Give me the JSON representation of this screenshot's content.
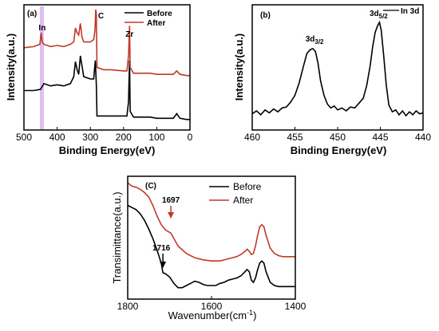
{
  "chart_data": [
    {
      "type": "line",
      "panel_label": "(a)",
      "xlabel": "Binding Energy(eV)",
      "ylabel": "Intensity(a.u.)",
      "xlim": [
        500,
        0
      ],
      "x_reversed": true,
      "xticks": [
        500,
        400,
        300,
        200,
        100,
        0
      ],
      "annotations": [
        {
          "text": "In",
          "x": 445
        },
        {
          "text": "C",
          "x": 285
        },
        {
          "text": "Zr",
          "x": 182
        }
      ],
      "highlight_band": {
        "x_from": 452,
        "x_to": 440,
        "color": "#d8b4f0"
      },
      "series": [
        {
          "name": "Before",
          "color": "#000000",
          "x": [
            500,
            470,
            450,
            440,
            420,
            400,
            380,
            360,
            350,
            345,
            340,
            335,
            330,
            320,
            300,
            290,
            285,
            282,
            280,
            260,
            240,
            200,
            190,
            185,
            182,
            180,
            170,
            150,
            120,
            100,
            60,
            50,
            40,
            30,
            10,
            0
          ],
          "y": [
            0.3,
            0.3,
            0.31,
            0.36,
            0.34,
            0.35,
            0.34,
            0.36,
            0.42,
            0.55,
            0.48,
            0.44,
            0.6,
            0.42,
            0.4,
            0.4,
            0.56,
            0.35,
            0.08,
            0.08,
            0.08,
            0.08,
            0.08,
            0.2,
            0.56,
            0.12,
            0.07,
            0.07,
            0.07,
            0.06,
            0.06,
            0.06,
            0.1,
            0.06,
            0.05,
            0.05
          ]
        },
        {
          "name": "After",
          "color": "#c0392b",
          "x": [
            500,
            470,
            452,
            448,
            445,
            440,
            420,
            400,
            380,
            360,
            350,
            345,
            340,
            335,
            330,
            325,
            320,
            300,
            290,
            286,
            284,
            282,
            280,
            260,
            240,
            200,
            190,
            185,
            182,
            180,
            170,
            150,
            120,
            100,
            60,
            50,
            40,
            30,
            10,
            0
          ],
          "y": [
            0.67,
            0.68,
            0.7,
            0.8,
            0.72,
            0.7,
            0.68,
            0.69,
            0.68,
            0.7,
            0.72,
            0.84,
            0.8,
            0.78,
            0.88,
            0.76,
            0.72,
            0.72,
            0.74,
            0.82,
            1.0,
            0.96,
            0.5,
            0.48,
            0.48,
            0.47,
            0.47,
            0.6,
            0.86,
            0.5,
            0.45,
            0.45,
            0.45,
            0.44,
            0.44,
            0.44,
            0.47,
            0.44,
            0.43,
            0.43
          ]
        }
      ]
    },
    {
      "type": "line",
      "panel_label": "(b)",
      "xlabel": "Binding Energy(eV)",
      "ylabel": "Intensity(a.u.)",
      "xlim": [
        460,
        440
      ],
      "x_reversed": true,
      "xticks": [
        460,
        455,
        450,
        445,
        440
      ],
      "legend_text": "In 3d",
      "annotations": [
        {
          "text": "3d",
          "sub": "3/2",
          "x": 452.7
        },
        {
          "text": "3d",
          "sub": "5/2",
          "x": 445.2
        }
      ],
      "series": [
        {
          "name": "In 3d",
          "color": "#000000",
          "x": [
            460,
            459.5,
            459,
            458.5,
            458,
            457.5,
            457,
            456.5,
            456,
            455.5,
            455,
            454.5,
            454,
            453.6,
            453.2,
            452.9,
            452.6,
            452.3,
            452,
            451.6,
            451.2,
            450.8,
            450.4,
            450,
            449.5,
            449,
            448.5,
            448,
            447.5,
            447,
            446.6,
            446.2,
            445.9,
            445.6,
            445.3,
            445.1,
            444.9,
            444.6,
            444.3,
            444,
            443.6,
            443.2,
            442.8,
            442.4,
            442,
            441.6,
            441.2,
            440.8,
            440.4,
            440
          ],
          "y": [
            0.06,
            0.09,
            0.05,
            0.1,
            0.07,
            0.11,
            0.08,
            0.12,
            0.13,
            0.18,
            0.25,
            0.38,
            0.55,
            0.68,
            0.72,
            0.73,
            0.7,
            0.58,
            0.4,
            0.25,
            0.16,
            0.12,
            0.14,
            0.1,
            0.12,
            0.09,
            0.13,
            0.12,
            0.17,
            0.22,
            0.35,
            0.55,
            0.75,
            0.9,
            0.97,
            1.0,
            0.92,
            0.65,
            0.35,
            0.15,
            0.08,
            0.1,
            0.05,
            0.09,
            0.04,
            0.08,
            0.05,
            0.09,
            0.06,
            0.07
          ]
        }
      ]
    },
    {
      "type": "line",
      "panel_label": "(C)",
      "xlabel": "Wavenumber(cm",
      "xlabel_sup": "-1",
      "xlabel_tail": ")",
      "ylabel": "Transimittance(a.u.)",
      "xlim": [
        1800,
        1400
      ],
      "x_reversed": true,
      "xticks": [
        1800,
        1600,
        1400
      ],
      "annotations": [
        {
          "text": "1697",
          "x": 1697,
          "color": "#c0392b"
        },
        {
          "text": "1716",
          "x": 1716,
          "color": "#000000"
        }
      ],
      "series": [
        {
          "name": "Before",
          "color": "#000000",
          "x": [
            1800,
            1790,
            1780,
            1770,
            1760,
            1750,
            1740,
            1730,
            1720,
            1716,
            1710,
            1700,
            1690,
            1680,
            1670,
            1660,
            1650,
            1640,
            1630,
            1620,
            1610,
            1600,
            1590,
            1580,
            1570,
            1560,
            1550,
            1540,
            1530,
            1520,
            1515,
            1510,
            1505,
            1500,
            1495,
            1490,
            1485,
            1480,
            1475,
            1470,
            1460,
            1450,
            1440,
            1430,
            1420,
            1410,
            1400
          ],
          "y": [
            0.78,
            0.76,
            0.74,
            0.7,
            0.64,
            0.56,
            0.47,
            0.36,
            0.24,
            0.15,
            0.14,
            0.11,
            0.05,
            0.01,
            0.01,
            0.03,
            0.05,
            0.07,
            0.06,
            0.04,
            0.03,
            0.03,
            0.03,
            0.05,
            0.06,
            0.08,
            0.09,
            0.1,
            0.12,
            0.16,
            0.18,
            0.16,
            0.08,
            0.06,
            0.1,
            0.18,
            0.24,
            0.26,
            0.24,
            0.16,
            0.06,
            0.03,
            0.02,
            0.02,
            0.02,
            0.02,
            0.02
          ]
        },
        {
          "name": "After",
          "color": "#c0392b",
          "x": [
            1800,
            1790,
            1780,
            1770,
            1760,
            1750,
            1740,
            1730,
            1720,
            1710,
            1697,
            1690,
            1680,
            1660,
            1640,
            1620,
            1600,
            1580,
            1560,
            1540,
            1530,
            1520,
            1515,
            1510,
            1505,
            1500,
            1495,
            1490,
            1485,
            1480,
            1475,
            1470,
            1460,
            1450,
            1440,
            1430,
            1420,
            1410,
            1400
          ],
          "y": [
            0.99,
            0.96,
            0.95,
            0.93,
            0.9,
            0.86,
            0.78,
            0.68,
            0.6,
            0.55,
            0.52,
            0.47,
            0.4,
            0.33,
            0.29,
            0.27,
            0.26,
            0.26,
            0.28,
            0.3,
            0.32,
            0.35,
            0.37,
            0.35,
            0.32,
            0.33,
            0.4,
            0.5,
            0.58,
            0.6,
            0.58,
            0.5,
            0.38,
            0.33,
            0.31,
            0.3,
            0.3,
            0.3,
            0.3
          ]
        }
      ]
    }
  ]
}
